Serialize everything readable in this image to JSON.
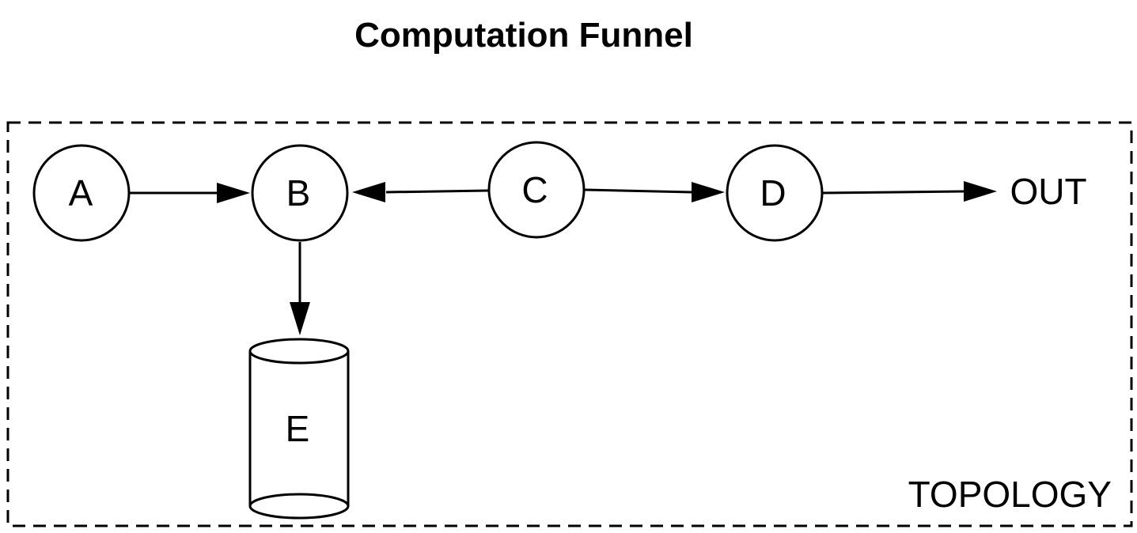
{
  "title": "Computation Funnel",
  "boundary_label": "TOPOLOGY",
  "nodes": {
    "A": {
      "label": "A",
      "shape": "circle"
    },
    "B": {
      "label": "B",
      "shape": "circle"
    },
    "C": {
      "label": "C",
      "shape": "circle"
    },
    "D": {
      "label": "D",
      "shape": "circle"
    },
    "E": {
      "label": "E",
      "shape": "cylinder"
    }
  },
  "output_label": "OUT",
  "edges": [
    {
      "from": "A",
      "to": "B"
    },
    {
      "from": "C",
      "to": "B"
    },
    {
      "from": "C",
      "to": "D"
    },
    {
      "from": "D",
      "to": "OUT"
    },
    {
      "from": "B",
      "to": "E"
    }
  ],
  "colors": {
    "stroke": "#000000",
    "fill": "#ffffff",
    "text": "#000000"
  }
}
